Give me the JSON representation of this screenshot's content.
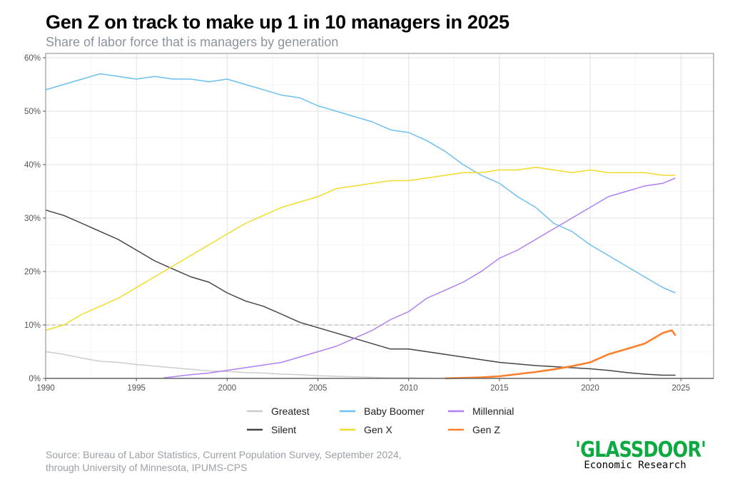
{
  "chart_data": {
    "type": "line",
    "title": "Gen Z on track to make up 1 in 10 managers in 2025",
    "subtitle": "Share of labor force that is managers by generation",
    "xlabel": "",
    "ylabel": "",
    "xlim": [
      1990,
      2026.8
    ],
    "ylim": [
      0,
      60.8
    ],
    "x_ticks": [
      "1990",
      "1995",
      "2000",
      "2005",
      "2010",
      "2015",
      "2020",
      "2025"
    ],
    "y_ticks": [
      "0%",
      "10%",
      "20%",
      "30%",
      "40%",
      "50%",
      "60%"
    ],
    "grid": true,
    "reference_line": {
      "y": 10,
      "style": "dashed"
    },
    "legend_position": "bottom",
    "series": [
      {
        "name": "Greatest",
        "color": "#cccccc",
        "x": [
          1990,
          1991,
          1992,
          1993,
          1994,
          1995,
          1996,
          1997,
          1998,
          1999,
          2000,
          2001,
          2002,
          2003,
          2004,
          2005,
          2006,
          2007,
          2008,
          2009,
          2010,
          2011,
          2012
        ],
        "values": [
          5,
          4.5,
          3.8,
          3.2,
          3,
          2.6,
          2.3,
          2,
          1.7,
          1.4,
          1.3,
          1.1,
          1,
          0.8,
          0.7,
          0.5,
          0.4,
          0.3,
          0.2,
          0.1,
          0.1,
          0.05,
          0
        ]
      },
      {
        "name": "Silent",
        "color": "#444444",
        "x": [
          1990,
          1991,
          1992,
          1993,
          1994,
          1995,
          1996,
          1997,
          1998,
          1999,
          2000,
          2001,
          2002,
          2003,
          2004,
          2005,
          2006,
          2007,
          2008,
          2009,
          2010,
          2011,
          2012,
          2013,
          2014,
          2015,
          2016,
          2017,
          2018,
          2019,
          2020,
          2021,
          2022,
          2023,
          2024,
          2024.7
        ],
        "values": [
          31.5,
          30.5,
          29,
          27.5,
          26,
          24,
          22,
          20.5,
          19,
          18,
          16,
          14.5,
          13.5,
          12,
          10.5,
          9.5,
          8.5,
          7.5,
          6.5,
          5.5,
          5.5,
          5,
          4.5,
          4,
          3.5,
          3,
          2.7,
          2.4,
          2.2,
          2,
          1.8,
          1.5,
          1.1,
          0.8,
          0.6,
          0.6
        ]
      },
      {
        "name": "Baby Boomer",
        "color": "#6cc0ef",
        "x": [
          1990,
          1991,
          1992,
          1993,
          1994,
          1995,
          1996,
          1997,
          1998,
          1999,
          2000,
          2001,
          2002,
          2003,
          2004,
          2005,
          2006,
          2007,
          2008,
          2009,
          2010,
          2011,
          2012,
          2013,
          2014,
          2015,
          2016,
          2017,
          2018,
          2019,
          2020,
          2021,
          2022,
          2023,
          2024,
          2024.7
        ],
        "values": [
          54,
          55,
          56,
          57,
          56.5,
          56,
          56.5,
          56,
          56,
          55.5,
          56,
          55,
          54,
          53,
          52.5,
          51,
          50,
          49,
          48,
          46.5,
          46,
          44.5,
          42.5,
          40,
          38,
          36.5,
          34,
          32,
          29,
          27.5,
          25,
          23,
          21,
          19,
          17,
          16
        ]
      },
      {
        "name": "Gen X",
        "color": "#f2dc2a",
        "x": [
          1990,
          1991,
          1992,
          1993,
          1994,
          1995,
          1996,
          1997,
          1998,
          1999,
          2000,
          2001,
          2002,
          2003,
          2004,
          2005,
          2006,
          2007,
          2008,
          2009,
          2010,
          2011,
          2012,
          2013,
          2014,
          2015,
          2016,
          2017,
          2018,
          2019,
          2020,
          2021,
          2022,
          2023,
          2024,
          2024.7
        ],
        "values": [
          9,
          10,
          12,
          13.5,
          15,
          17,
          19,
          21,
          23,
          25,
          27,
          29,
          30.5,
          32,
          33,
          34,
          35.5,
          36,
          36.5,
          37,
          37,
          37.5,
          38,
          38.5,
          38.5,
          39,
          39,
          39.5,
          39,
          38.5,
          39,
          38.5,
          38.5,
          38.5,
          38,
          38
        ]
      },
      {
        "name": "Millennial",
        "color": "#b07ff5",
        "x": [
          1996.5,
          1997,
          1998,
          1999,
          2000,
          2001,
          2002,
          2003,
          2004,
          2005,
          2006,
          2007,
          2008,
          2009,
          2010,
          2011,
          2012,
          2013,
          2014,
          2015,
          2016,
          2017,
          2018,
          2019,
          2020,
          2021,
          2022,
          2023,
          2024,
          2024.7
        ],
        "values": [
          0.1,
          0.3,
          0.7,
          1,
          1.5,
          2,
          2.5,
          3,
          4,
          5,
          6,
          7.5,
          9,
          11,
          12.5,
          15,
          16.5,
          18,
          20,
          22.5,
          24,
          26,
          28,
          30,
          32,
          34,
          35,
          36,
          36.5,
          37.5
        ]
      },
      {
        "name": "Gen Z",
        "color": "#ff7f2a",
        "x": [
          2012,
          2013,
          2014,
          2015,
          2016,
          2017,
          2018,
          2019,
          2020,
          2021,
          2022,
          2023,
          2024,
          2024.5,
          2024.7
        ],
        "values": [
          0,
          0.1,
          0.2,
          0.4,
          0.8,
          1.2,
          1.7,
          2.3,
          3,
          4.5,
          5.5,
          6.5,
          8.5,
          9,
          8
        ]
      }
    ]
  },
  "source": [
    "Source: Bureau of Labor Statistics, Current Population Survey, September 2024,",
    "through University of Minnesota, IPUMS-CPS"
  ],
  "logo": {
    "brand": "'GLASSDOOR'",
    "sub": "Economic Research"
  }
}
